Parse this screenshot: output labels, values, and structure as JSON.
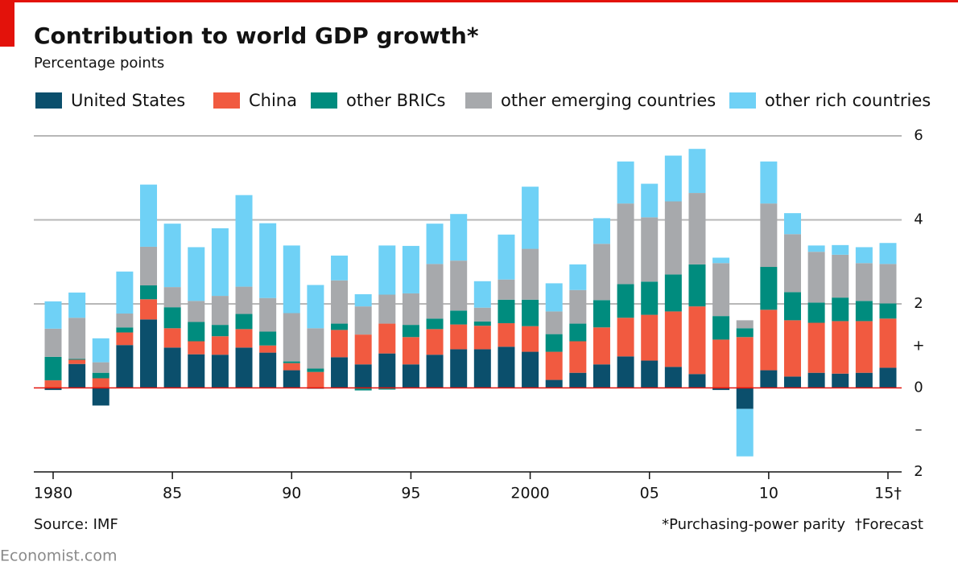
{
  "chart_data": {
    "type": "stacked-bar",
    "title": "Contribution to world GDP growth*",
    "subtitle": "Percentage points",
    "source": "Source: IMF",
    "footnotes": [
      "*Purchasing-power parity",
      "†Forecast"
    ],
    "brand": "Economist.com",
    "categories": [
      "1980",
      null,
      null,
      null,
      null,
      "85",
      null,
      null,
      null,
      null,
      "90",
      null,
      null,
      null,
      null,
      "95",
      null,
      null,
      null,
      null,
      "2000",
      null,
      null,
      null,
      null,
      "05",
      null,
      null,
      null,
      null,
      "10",
      null,
      null,
      null,
      null,
      "15†"
    ],
    "series": [
      {
        "name": "United States",
        "color": "#0b4f6c",
        "values": [
          -0.05,
          0.57,
          -0.42,
          1.02,
          1.63,
          0.96,
          0.8,
          0.79,
          0.96,
          0.84,
          0.42,
          -0.02,
          0.73,
          0.56,
          0.82,
          0.56,
          0.79,
          0.92,
          0.92,
          0.98,
          0.86,
          0.19,
          0.36,
          0.56,
          0.75,
          0.65,
          0.5,
          0.33,
          -0.05,
          -0.5,
          0.42,
          0.27,
          0.36,
          0.34,
          0.36,
          0.48
        ]
      },
      {
        "name": "China",
        "color": "#f15a40",
        "values": [
          0.18,
          0.1,
          0.23,
          0.3,
          0.48,
          0.46,
          0.31,
          0.44,
          0.44,
          0.17,
          0.17,
          0.38,
          0.65,
          0.71,
          0.71,
          0.65,
          0.61,
          0.59,
          0.56,
          0.56,
          0.61,
          0.67,
          0.75,
          0.88,
          0.92,
          1.09,
          1.32,
          1.61,
          1.15,
          1.21,
          1.44,
          1.34,
          1.19,
          1.25,
          1.23,
          1.17
        ]
      },
      {
        "name": "other BRICs",
        "color": "#008c7e",
        "values": [
          0.56,
          0.02,
          0.13,
          0.12,
          0.33,
          0.5,
          0.46,
          0.27,
          0.36,
          0.33,
          0.04,
          0.08,
          0.15,
          -0.06,
          -0.04,
          0.29,
          0.25,
          0.33,
          0.1,
          0.56,
          0.63,
          0.42,
          0.42,
          0.65,
          0.8,
          0.79,
          0.88,
          1.0,
          0.56,
          0.21,
          1.02,
          0.67,
          0.48,
          0.56,
          0.48,
          0.36
        ]
      },
      {
        "name": "other emerging countries",
        "color": "#a7a9ac",
        "values": [
          0.67,
          0.98,
          0.25,
          0.33,
          0.92,
          0.48,
          0.5,
          0.69,
          0.65,
          0.8,
          1.15,
          0.96,
          1.03,
          0.67,
          0.69,
          0.75,
          1.3,
          1.19,
          0.33,
          0.48,
          1.21,
          0.54,
          0.8,
          1.34,
          1.92,
          1.53,
          1.74,
          1.7,
          1.26,
          0.19,
          1.51,
          1.38,
          1.21,
          1.02,
          0.9,
          0.94
        ]
      },
      {
        "name": "other rich countries",
        "color": "#6fd1f6",
        "values": [
          0.65,
          0.6,
          0.57,
          1.0,
          1.48,
          1.51,
          1.28,
          1.61,
          2.18,
          1.78,
          1.61,
          1.03,
          0.59,
          0.29,
          1.17,
          1.13,
          0.96,
          1.11,
          0.63,
          1.07,
          1.48,
          0.67,
          0.61,
          0.61,
          1.0,
          0.8,
          1.09,
          1.05,
          0.13,
          -1.13,
          1.0,
          0.5,
          0.15,
          0.23,
          0.38,
          0.5
        ]
      }
    ],
    "ylim": [
      -2,
      6
    ],
    "yticks": [
      {
        "value": -2,
        "label": "2"
      },
      {
        "value": -1,
        "label": "–"
      },
      0,
      {
        "value": 1,
        "label": "+"
      },
      2,
      4,
      6
    ],
    "grid": true
  }
}
